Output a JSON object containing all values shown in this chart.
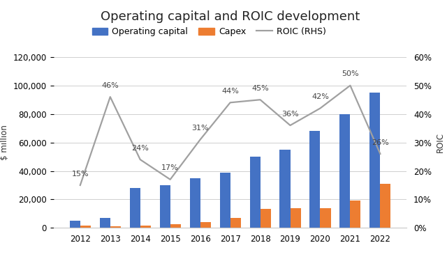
{
  "title": "Operating capital and ROIC development",
  "years": [
    2012,
    2013,
    2014,
    2015,
    2016,
    2017,
    2018,
    2019,
    2020,
    2021,
    2022
  ],
  "operating_capital": [
    5000,
    7000,
    28000,
    30000,
    35000,
    39000,
    50000,
    55000,
    68000,
    80000,
    95000
  ],
  "capex": [
    1500,
    1300,
    1800,
    2500,
    4000,
    6800,
    13500,
    14000,
    14000,
    19000,
    31000
  ],
  "roic": [
    0.15,
    0.46,
    0.24,
    0.17,
    0.31,
    0.44,
    0.45,
    0.36,
    0.42,
    0.5,
    0.26
  ],
  "roic_labels": [
    "15%",
    "46%",
    "24%",
    "17%",
    "31%",
    "44%",
    "45%",
    "36%",
    "42%",
    "50%",
    "26%"
  ],
  "bar_color_blue": "#4472C4",
  "bar_color_orange": "#ED7D31",
  "line_color": "#A0A0A0",
  "legend_labels": [
    "Operating capital",
    "Capex",
    "ROIC (RHS)"
  ],
  "ylabel_left": "$ million",
  "ylabel_right": "ROIC",
  "ylim_left": [
    0,
    120000
  ],
  "ylim_right": [
    0,
    0.6
  ],
  "yticks_left": [
    0,
    20000,
    40000,
    60000,
    80000,
    100000,
    120000
  ],
  "yticks_right": [
    0.0,
    0.1,
    0.2,
    0.3,
    0.4,
    0.5,
    0.6
  ],
  "background_color": "#ffffff",
  "title_fontsize": 13,
  "tick_fontsize": 8.5,
  "label_fontsize": 8.5,
  "annot_fontsize": 8
}
